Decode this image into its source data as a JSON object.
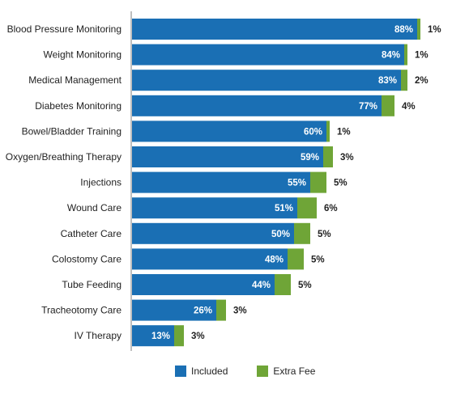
{
  "chart_data": {
    "type": "bar",
    "orientation": "horizontal",
    "stacked": true,
    "categories": [
      "Blood Pressure Monitoring",
      "Weight Monitoring",
      "Medical Management",
      "Diabetes Monitoring",
      "Bowel/Bladder Training",
      "Oxygen/Breathing Therapy",
      "Injections",
      "Wound Care",
      "Catheter Care",
      "Colostomy Care",
      "Tube Feeding",
      "Tracheotomy Care",
      "IV Therapy"
    ],
    "series": [
      {
        "name": "Included",
        "color": "#1a6fb4",
        "values": [
          88,
          84,
          83,
          77,
          60,
          59,
          55,
          51,
          50,
          48,
          44,
          26,
          13
        ]
      },
      {
        "name": "Extra Fee",
        "color": "#6fa537",
        "values": [
          1,
          1,
          2,
          4,
          1,
          3,
          5,
          6,
          5,
          5,
          5,
          3,
          3
        ]
      }
    ],
    "value_suffix": "%",
    "xlim": [
      0,
      100
    ],
    "grid": false,
    "legend": "bottom-center"
  }
}
